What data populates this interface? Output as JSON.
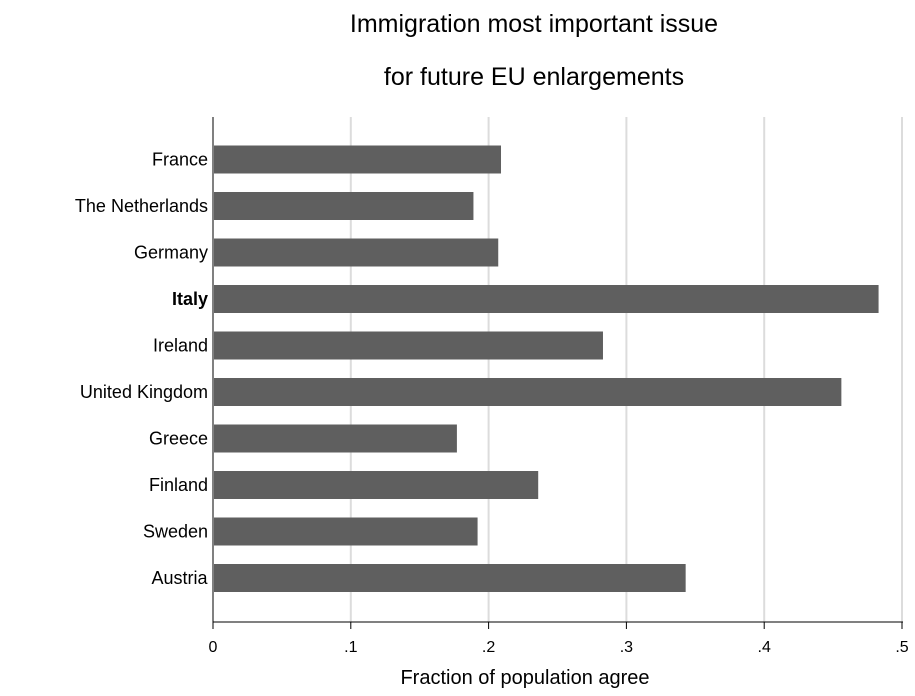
{
  "chart_data": {
    "type": "bar",
    "orientation": "horizontal",
    "title": [
      "Immigration most important issue",
      "for future EU enlargements"
    ],
    "xlabel": "Fraction of population agree",
    "ylabel": "",
    "xlim": [
      0,
      0.5
    ],
    "x_ticks": [
      0,
      0.1,
      0.2,
      0.3,
      0.4,
      0.5
    ],
    "x_tick_labels": [
      "0",
      ".1",
      ".2",
      ".3",
      ".4",
      ".5"
    ],
    "grid": "vertical",
    "legend": "none",
    "bar_color": "#5f5f5f",
    "grid_color": "#dcdcdc",
    "highlighted_category": "Italy",
    "categories": [
      "France",
      "The Netherlands",
      "Germany",
      "Italy",
      "Ireland",
      "United Kingdom",
      "Greece",
      "Finland",
      "Sweden",
      "Austria"
    ],
    "values": [
      0.209,
      0.189,
      0.207,
      0.483,
      0.283,
      0.456,
      0.177,
      0.236,
      0.192,
      0.343
    ]
  }
}
